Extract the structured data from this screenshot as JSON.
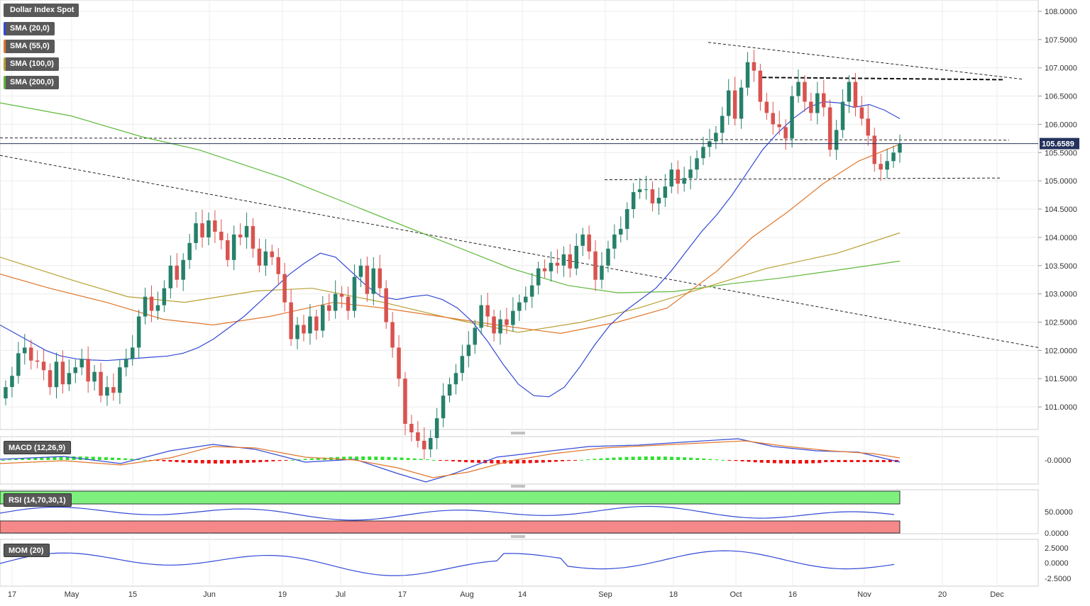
{
  "chart_data": {
    "type": "candlestick",
    "instrument": "Dollar Index Spot",
    "last_price_label": "105.6589",
    "last_price": 105.6589,
    "price_axis": {
      "ylim": [
        100.6,
        108.2
      ],
      "ticks": [
        "108.0000",
        "107.5000",
        "107.0000",
        "106.5000",
        "106.0000",
        "105.5000",
        "105.0000",
        "104.5000",
        "104.0000",
        "103.5000",
        "103.0000",
        "102.5000",
        "102.0000",
        "101.5000",
        "101.0000"
      ]
    },
    "x_axis_labels": [
      "17",
      "May",
      "15",
      "Jun",
      "19",
      "Jul",
      "17",
      "Aug",
      "14",
      "Sep",
      "18",
      "Oct",
      "16",
      "Nov",
      "20",
      "Dec"
    ],
    "legend": [
      {
        "label": "SMA (20,0)",
        "color": "#3349d6"
      },
      {
        "label": "SMA (55,0)",
        "color": "#e0762b"
      },
      {
        "label": "SMA (100,0)",
        "color": "#b8a032"
      },
      {
        "label": "SMA (200,0)",
        "color": "#5fb83a"
      }
    ],
    "colors": {
      "up": "#26806a",
      "down": "#d9534f",
      "grid": "#e5e5e5",
      "trend": "#222222"
    },
    "candles_close": [
      101.35,
      101.55,
      101.95,
      102.05,
      101.82,
      101.8,
      101.65,
      101.35,
      101.8,
      101.4,
      101.6,
      101.7,
      101.85,
      101.45,
      101.62,
      101.2,
      101.35,
      101.25,
      101.7,
      101.85,
      102.05,
      102.6,
      102.95,
      102.7,
      102.8,
      103.1,
      103.5,
      103.25,
      103.6,
      103.9,
      104.25,
      104.0,
      104.3,
      104.1,
      103.95,
      103.6,
      104.05,
      104.0,
      104.2,
      103.8,
      103.5,
      103.75,
      103.65,
      103.35,
      102.85,
      102.2,
      102.45,
      102.3,
      102.6,
      102.35,
      102.8,
      102.7,
      103.0,
      102.95,
      102.7,
      103.3,
      103.5,
      103.0,
      103.45,
      103.1,
      102.5,
      102.05,
      101.5,
      100.7,
      100.55,
      100.4,
      100.25,
      100.45,
      100.8,
      101.2,
      101.4,
      101.6,
      101.9,
      102.1,
      102.4,
      102.8,
      102.6,
      102.3,
      102.55,
      102.45,
      102.7,
      102.85,
      102.95,
      103.15,
      103.45,
      103.4,
      103.55,
      103.5,
      103.7,
      103.45,
      103.85,
      104.05,
      103.75,
      103.25,
      103.5,
      103.8,
      104.05,
      104.15,
      104.5,
      104.8,
      104.85,
      104.85,
      104.6,
      104.7,
      104.9,
      105.2,
      104.95,
      105.05,
      105.2,
      105.4,
      105.6,
      105.7,
      105.85,
      106.15,
      106.6,
      106.1,
      106.65,
      107.1,
      106.95,
      106.4,
      106.2,
      106.0,
      105.95,
      105.75,
      106.5,
      106.75,
      106.4,
      106.2,
      106.55,
      106.3,
      105.55,
      105.9,
      106.4,
      106.75,
      106.3,
      106.1,
      105.8,
      105.3,
      105.2,
      105.35,
      105.5,
      105.66
    ],
    "sma20": [
      102.45,
      102.3,
      102.15,
      102.0,
      101.9,
      101.85,
      101.83,
      101.82,
      101.84,
      101.86,
      101.88,
      101.9,
      101.95,
      102.05,
      102.2,
      102.4,
      102.6,
      102.85,
      103.1,
      103.35,
      103.55,
      103.72,
      103.65,
      103.4,
      103.15,
      102.95,
      102.9,
      102.95,
      102.98,
      102.9,
      102.75,
      102.5,
      102.15,
      101.75,
      101.4,
      101.2,
      101.18,
      101.35,
      101.7,
      102.1,
      102.45,
      102.7,
      102.9,
      103.1,
      103.4,
      103.75,
      104.1,
      104.4,
      104.75,
      105.15,
      105.55,
      105.85,
      106.1,
      106.3,
      106.4,
      106.38,
      106.3,
      106.35,
      106.25,
      106.1
    ]
  },
  "subpanels": {
    "macd": {
      "label": "MACD (12,26,9)",
      "tick": "-0.0000",
      "colors": {
        "macd": "#3349d6",
        "signal": "#e0762b",
        "hist_up": "#30e030",
        "hist_down": "#ee1111"
      }
    },
    "rsi": {
      "label": "RSI (14,70,30,1)",
      "ticks": [
        "50.0000",
        "0.0000"
      ],
      "upper": 70,
      "lower": 30,
      "colors": {
        "over": "#7ef07e",
        "under": "#f58888",
        "line": "#3349d6"
      }
    },
    "mom": {
      "label": "MOM (20)",
      "ticks": [
        "2.5000",
        "0.0000",
        "-2.5000"
      ],
      "color": "#3349d6"
    }
  }
}
